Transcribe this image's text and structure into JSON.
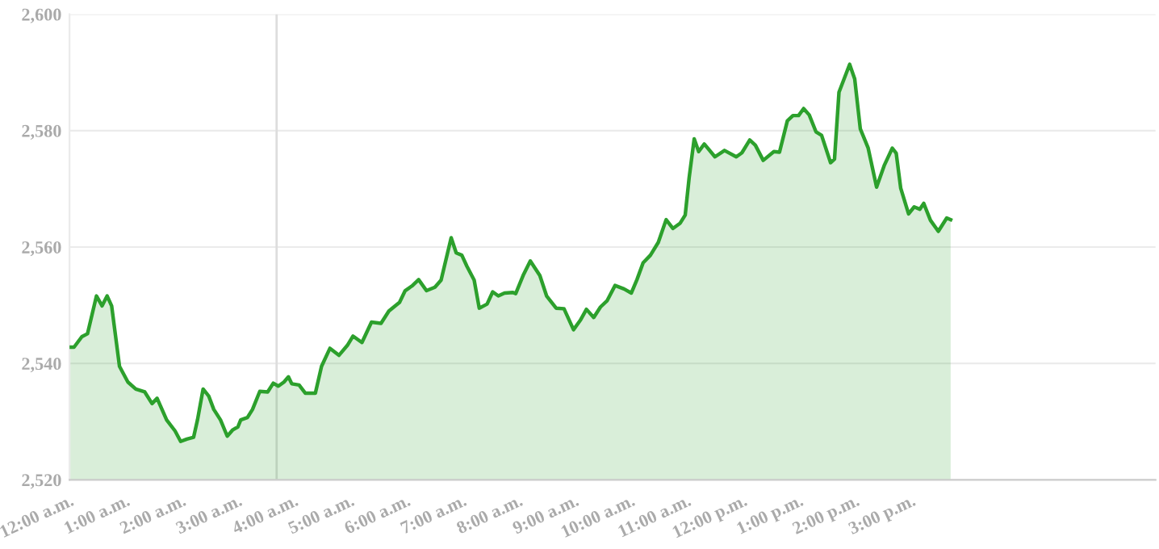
{
  "chart_data": {
    "type": "area",
    "x": [
      0.0,
      0.08,
      0.22,
      0.32,
      0.48,
      0.58,
      0.67,
      0.75,
      0.89,
      1.04,
      1.18,
      1.34,
      1.47,
      1.56,
      1.73,
      1.88,
      1.98,
      2.09,
      2.21,
      2.28,
      2.38,
      2.48,
      2.57,
      2.69,
      2.81,
      2.91,
      3.0,
      3.05,
      3.17,
      3.26,
      3.39,
      3.53,
      3.63,
      3.72,
      3.82,
      3.9,
      3.96,
      4.09,
      4.2,
      4.38,
      4.49,
      4.64,
      4.8,
      4.95,
      5.05,
      5.21,
      5.38,
      5.55,
      5.69,
      5.88,
      5.98,
      6.1,
      6.22,
      6.36,
      6.51,
      6.62,
      6.8,
      6.89,
      6.99,
      7.08,
      7.21,
      7.3,
      7.44,
      7.54,
      7.64,
      7.75,
      7.9,
      7.95,
      8.09,
      8.21,
      8.38,
      8.5,
      8.67,
      8.81,
      8.98,
      9.1,
      9.21,
      9.34,
      9.46,
      9.58,
      9.72,
      9.88,
      10.01,
      10.11,
      10.22,
      10.35,
      10.49,
      10.63,
      10.75,
      10.88,
      10.97,
      11.04,
      11.13,
      11.21,
      11.31,
      11.5,
      11.67,
      11.88,
      11.98,
      12.12,
      12.22,
      12.36,
      12.55,
      12.65,
      12.79,
      12.89,
      12.99,
      13.08,
      13.18,
      13.3,
      13.4,
      13.56,
      13.63,
      13.71,
      13.9,
      13.99,
      14.09,
      14.23,
      14.38,
      14.52,
      14.66,
      14.73,
      14.81,
      14.95,
      15.05,
      15.15,
      15.22,
      15.34,
      15.48,
      15.63,
      15.7
    ],
    "series": [
      {
        "color": "#2ca02c",
        "values": [
          2542.8,
          2542.8,
          2544.6,
          2545.1,
          2551.6,
          2549.9,
          2551.6,
          2549.9,
          2539.5,
          2536.8,
          2535.6,
          2535.1,
          2533.1,
          2534.0,
          2530.3,
          2528.4,
          2526.6,
          2527.0,
          2527.3,
          2530.3,
          2535.6,
          2534.4,
          2532.1,
          2530.3,
          2527.5,
          2528.6,
          2529.1,
          2530.3,
          2530.7,
          2532.1,
          2535.2,
          2535.1,
          2536.6,
          2536.1,
          2536.8,
          2537.7,
          2536.5,
          2536.3,
          2534.9,
          2534.9,
          2539.5,
          2542.6,
          2541.4,
          2543.1,
          2544.7,
          2543.6,
          2547.1,
          2546.9,
          2549.0,
          2550.5,
          2552.5,
          2553.3,
          2554.4,
          2552.5,
          2553.1,
          2554.3,
          2561.6,
          2559.0,
          2558.6,
          2556.7,
          2554.3,
          2549.5,
          2550.2,
          2552.3,
          2551.6,
          2552.1,
          2552.2,
          2552.0,
          2555.3,
          2557.6,
          2555.1,
          2551.6,
          2549.5,
          2549.4,
          2545.8,
          2547.4,
          2549.3,
          2547.9,
          2549.7,
          2550.8,
          2553.4,
          2552.8,
          2552.1,
          2554.4,
          2557.3,
          2558.6,
          2560.8,
          2564.7,
          2563.2,
          2564.1,
          2565.5,
          2571.9,
          2578.6,
          2576.4,
          2577.7,
          2575.5,
          2576.6,
          2575.5,
          2576.2,
          2578.4,
          2577.5,
          2574.9,
          2576.4,
          2576.3,
          2581.7,
          2582.6,
          2582.6,
          2583.8,
          2582.7,
          2579.8,
          2579.2,
          2574.5,
          2575.1,
          2586.6,
          2591.4,
          2588.9,
          2580.3,
          2577.0,
          2570.3,
          2574.1,
          2577.0,
          2576.1,
          2570.1,
          2565.7,
          2566.9,
          2566.5,
          2567.5,
          2564.6,
          2562.7,
          2565.0,
          2564.7
        ]
      }
    ],
    "xlim": [
      0,
      19.35
    ],
    "xticks": [
      {
        "value": 0,
        "label": "12:00 a.m."
      },
      {
        "value": 1,
        "label": "1:00 a.m."
      },
      {
        "value": 2,
        "label": "2:00 a.m."
      },
      {
        "value": 3,
        "label": "3:00 a.m."
      },
      {
        "value": 4,
        "label": "4:00 a.m."
      },
      {
        "value": 5,
        "label": "5:00 a.m."
      },
      {
        "value": 6,
        "label": "6:00 a.m."
      },
      {
        "value": 7,
        "label": "7:00 a.m."
      },
      {
        "value": 8,
        "label": "8:00 a.m."
      },
      {
        "value": 9,
        "label": "9:00 a.m."
      },
      {
        "value": 10,
        "label": "10:00 a.m."
      },
      {
        "value": 11,
        "label": "11:00 a.m."
      },
      {
        "value": 12,
        "label": "12:00 p.m."
      },
      {
        "value": 13,
        "label": "1:00 p.m."
      },
      {
        "value": 14,
        "label": "2:00 p.m."
      },
      {
        "value": 15,
        "label": "3:00 p.m."
      }
    ],
    "ylim": [
      2520,
      2600
    ],
    "yticks": [
      {
        "value": 2520,
        "label": "2,520"
      },
      {
        "value": 2540,
        "label": "2,540"
      },
      {
        "value": 2560,
        "label": "2,560"
      },
      {
        "value": 2580,
        "label": "2,580"
      },
      {
        "value": 2600,
        "label": "2,600"
      }
    ],
    "ref_lines": [
      {
        "axis": "x",
        "value": 3.69,
        "color": "#dddddd"
      }
    ],
    "grid": "y",
    "legend": false
  }
}
